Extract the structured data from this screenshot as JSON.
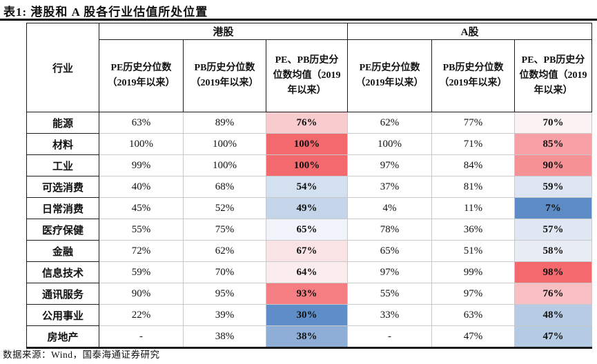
{
  "title": "表1:  港股和 A 股各行业估值所处位置",
  "source": "数据来源：Wind，国泰海通证券研究",
  "colors": {
    "heat_red_max": "#F4696E",
    "heat_blue_max": "#5C8BC6",
    "border_dark": "#1a1a1a",
    "border_light": "#c9c9c9"
  },
  "table": {
    "industry_header": "行业",
    "groups": [
      {
        "label": "港股"
      },
      {
        "label": "A股"
      }
    ],
    "subheaders": {
      "pe": "PE历史分位数（2019年以来）",
      "pb": "PB历史分位数（2019年以来）",
      "avg": "PE、PB历史分位数均值（2019年以来）"
    },
    "rows": [
      {
        "industry": "能源",
        "hk_pe": "63%",
        "hk_pb": "89%",
        "hk_avg": "76%",
        "hk_avg_bg": "#F8CBCE",
        "a_pe": "62%",
        "a_pb": "77%",
        "a_avg": "70%",
        "a_avg_bg": "#FBF2F3"
      },
      {
        "industry": "材料",
        "hk_pe": "100%",
        "hk_pb": "100%",
        "hk_avg": "100%",
        "hk_avg_bg": "#F4696E",
        "a_pe": "100%",
        "a_pb": "71%",
        "a_avg": "85%",
        "a_avg_bg": "#F7A1A6"
      },
      {
        "industry": "工业",
        "hk_pe": "99%",
        "hk_pb": "100%",
        "hk_avg": "100%",
        "hk_avg_bg": "#F4696E",
        "a_pe": "97%",
        "a_pb": "84%",
        "a_avg": "90%",
        "a_avg_bg": "#F69196"
      },
      {
        "industry": "可选消费",
        "hk_pe": "40%",
        "hk_pb": "68%",
        "hk_avg": "54%",
        "hk_avg_bg": "#D3E0EF",
        "a_pe": "37%",
        "a_pb": "81%",
        "a_avg": "59%",
        "a_avg_bg": "#DCE5F1"
      },
      {
        "industry": "日常消费",
        "hk_pe": "45%",
        "hk_pb": "52%",
        "hk_avg": "49%",
        "hk_avg_bg": "#C5D5E9",
        "a_pe": "4%",
        "a_pb": "11%",
        "a_avg": "7%",
        "a_avg_bg": "#5C8BC6"
      },
      {
        "industry": "医疗保健",
        "hk_pe": "55%",
        "hk_pb": "75%",
        "hk_avg": "65%",
        "hk_avg_bg": "#F0F4FA",
        "a_pe": "78%",
        "a_pb": "36%",
        "a_avg": "57%",
        "a_avg_bg": "#DEE7F2"
      },
      {
        "industry": "金融",
        "hk_pe": "72%",
        "hk_pb": "62%",
        "hk_avg": "67%",
        "hk_avg_bg": "#FAE3E5",
        "a_pe": "65%",
        "a_pb": "51%",
        "a_avg": "58%",
        "a_avg_bg": "#E7ECF5"
      },
      {
        "industry": "信息技术",
        "hk_pe": "59%",
        "hk_pb": "70%",
        "hk_avg": "64%",
        "hk_avg_bg": "#FBEDEE",
        "a_pe": "97%",
        "a_pb": "99%",
        "a_avg": "98%",
        "a_avg_bg": "#F4696E"
      },
      {
        "industry": "通讯服务",
        "hk_pe": "90%",
        "hk_pb": "95%",
        "hk_avg": "93%",
        "hk_avg_bg": "#F57E83",
        "a_pe": "55%",
        "a_pb": "97%",
        "a_avg": "76%",
        "a_avg_bg": "#F9C0C4"
      },
      {
        "industry": "公用事业",
        "hk_pe": "22%",
        "hk_pb": "39%",
        "hk_avg": "30%",
        "hk_avg_bg": "#5F8DC7",
        "a_pe": "33%",
        "a_pb": "63%",
        "a_avg": "48%",
        "a_avg_bg": "#B7CCE4"
      },
      {
        "industry": "房地产",
        "hk_pe": "-",
        "hk_pb": "38%",
        "hk_avg": "38%",
        "hk_avg_bg": "#8FAED7",
        "a_pe": "-",
        "a_pb": "47%",
        "a_avg": "47%",
        "a_avg_bg": "#B5CAE3"
      }
    ]
  }
}
